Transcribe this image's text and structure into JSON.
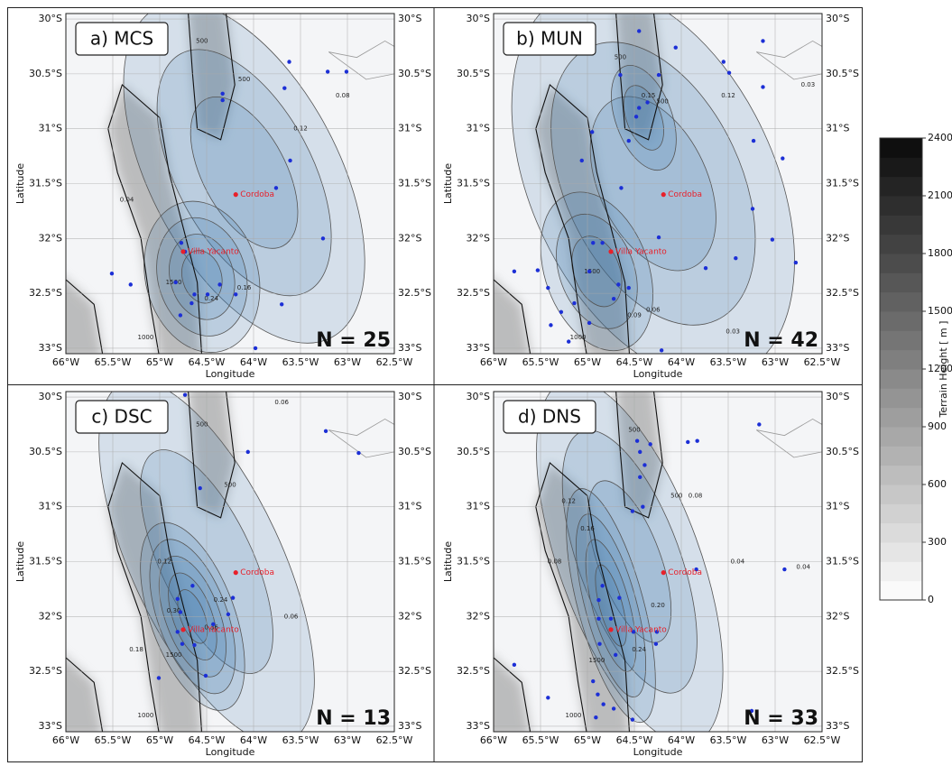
{
  "axes": {
    "xlabel": "Longitude",
    "ylabel": "Latitude",
    "xlim": [
      -66,
      -62.5
    ],
    "ylim": [
      -33.05,
      -29.95
    ],
    "xticks": [
      {
        "value": -66,
        "label": "66°W"
      },
      {
        "value": -65.5,
        "label": "65.5°W"
      },
      {
        "value": -65,
        "label": "65°W"
      },
      {
        "value": -64.5,
        "label": "64.5°W"
      },
      {
        "value": -64,
        "label": "64°W"
      },
      {
        "value": -63.5,
        "label": "63.5°W"
      },
      {
        "value": -63,
        "label": "63°W"
      },
      {
        "value": -62.5,
        "label": "62.5°W"
      }
    ],
    "yticks": [
      {
        "value": -30,
        "label": "30°S"
      },
      {
        "value": -30.5,
        "label": "30.5°S"
      },
      {
        "value": -31,
        "label": "31°S"
      },
      {
        "value": -31.5,
        "label": "31.5°S"
      },
      {
        "value": -32,
        "label": "32°S"
      },
      {
        "value": -32.5,
        "label": "32.5°S"
      },
      {
        "value": -33,
        "label": "33°S"
      }
    ]
  },
  "cities": [
    {
      "name": "Cordoba",
      "lon": -64.19,
      "lat": -31.6
    },
    {
      "name": "Villa Yacanto",
      "lon": -64.75,
      "lat": -32.12
    }
  ],
  "panels": [
    {
      "label": "a) MCS",
      "n_label": "N = 25",
      "contour_labels": [
        "500",
        "500",
        "1000",
        "1500",
        "0.04",
        "0.08",
        "0.12",
        "0.16",
        "0.24"
      ],
      "points": {
        "lon": [
          -63.62,
          -63.21,
          -63.01,
          -63.67,
          -64.33,
          -64.33,
          -63.61,
          -63.76,
          -63.26,
          -65.51,
          -65.31,
          -64.77,
          -64.73,
          -64.83,
          -64.63,
          -64.66,
          -64.49,
          -64.36,
          -64.19,
          -64.78,
          -63.7,
          -63.98
        ],
        "lat": [
          -30.39,
          -30.48,
          -30.48,
          -30.63,
          -30.68,
          -30.74,
          -31.29,
          -31.54,
          -32.0,
          -32.32,
          -32.42,
          -32.04,
          -32.12,
          -32.4,
          -32.51,
          -32.59,
          -32.51,
          -32.42,
          -32.51,
          -32.7,
          -32.6,
          -33.0
        ]
      }
    },
    {
      "label": "b) MUN",
      "n_label": "N = 42",
      "contour_labels": [
        "500",
        "500",
        "1000",
        "1500",
        "0.03",
        "0.06",
        "0.09",
        "0.12",
        "0.15",
        "0.03"
      ],
      "points": {
        "lon": [
          -64.45,
          -64.06,
          -63.13,
          -63.55,
          -63.49,
          -63.13,
          -64.65,
          -64.24,
          -64.45,
          -64.48,
          -64.36,
          -64.95,
          -64.56,
          -65.06,
          -63.23,
          -62.92,
          -64.64,
          -63.24,
          -64.24,
          -63.03,
          -62.78,
          -63.42,
          -63.74,
          -65.78,
          -65.53,
          -65.42,
          -65.28,
          -65.14,
          -64.94,
          -64.84,
          -64.98,
          -64.67,
          -64.72,
          -64.56,
          -65.39,
          -65.2,
          -64.98,
          -64.21
        ],
        "lat": [
          -30.11,
          -30.26,
          -30.2,
          -30.39,
          -30.49,
          -30.62,
          -30.51,
          -30.51,
          -30.81,
          -30.89,
          -30.76,
          -31.03,
          -31.11,
          -31.29,
          -31.11,
          -31.27,
          -31.54,
          -31.73,
          -31.99,
          -32.01,
          -32.22,
          -32.18,
          -32.27,
          -32.3,
          -32.29,
          -32.45,
          -32.67,
          -32.59,
          -32.04,
          -32.04,
          -32.3,
          -32.42,
          -32.55,
          -32.45,
          -32.79,
          -32.94,
          -32.77,
          -33.02
        ]
      }
    },
    {
      "label": "c) DSC",
      "n_label": "N = 13",
      "contour_labels": [
        "500",
        "500",
        "1000",
        "1500",
        "0.06",
        "0.06",
        "0.12",
        "0.18",
        "0.24",
        "0.30",
        "0.36"
      ],
      "points": {
        "lon": [
          -64.73,
          -64.06,
          -64.57,
          -63.23,
          -62.88,
          -64.81,
          -64.78,
          -64.81,
          -64.65,
          -64.22,
          -64.27,
          -64.43,
          -65.01,
          -64.51,
          -64.76,
          -64.63
        ],
        "lat": [
          -29.98,
          -30.5,
          -30.83,
          -30.31,
          -30.51,
          -31.84,
          -31.96,
          -32.14,
          -31.72,
          -31.83,
          -31.98,
          -32.07,
          -32.56,
          -32.54,
          -32.25,
          -32.26
        ]
      }
    },
    {
      "label": "d) DNS",
      "n_label": "N = 33",
      "contour_labels": [
        "500",
        "500",
        "1000",
        "1500",
        "0.04",
        "0.04",
        "0.08",
        "0.08",
        "0.12",
        "0.16",
        "0.20",
        "0.24"
      ],
      "points": {
        "lon": [
          -64.47,
          -64.33,
          -63.93,
          -63.83,
          -63.17,
          -64.44,
          -64.39,
          -64.44,
          -64.52,
          -64.41,
          -63.84,
          -62.9,
          -64.84,
          -64.88,
          -64.88,
          -64.75,
          -64.66,
          -64.87,
          -64.7,
          -64.51,
          -64.27,
          -64.26,
          -65.78,
          -65.42,
          -64.94,
          -64.89,
          -64.83,
          -64.72,
          -64.52,
          -64.91,
          -63.25
        ],
        "lat": [
          -30.4,
          -30.43,
          -30.41,
          -30.4,
          -30.25,
          -30.5,
          -30.62,
          -30.73,
          -31.04,
          -31.0,
          -31.57,
          -31.57,
          -31.72,
          -31.85,
          -32.02,
          -32.02,
          -31.83,
          -32.25,
          -32.35,
          -32.14,
          -32.25,
          -32.14,
          -32.44,
          -32.74,
          -32.59,
          -32.71,
          -32.8,
          -32.84,
          -32.94,
          -32.92,
          -32.86
        ]
      }
    }
  ],
  "colorbar": {
    "label": "Terrain Height [ m ]",
    "lim": [
      0,
      2400
    ],
    "ticks": [
      0,
      300,
      600,
      900,
      1200,
      1500,
      1800,
      2100,
      2400
    ]
  }
}
